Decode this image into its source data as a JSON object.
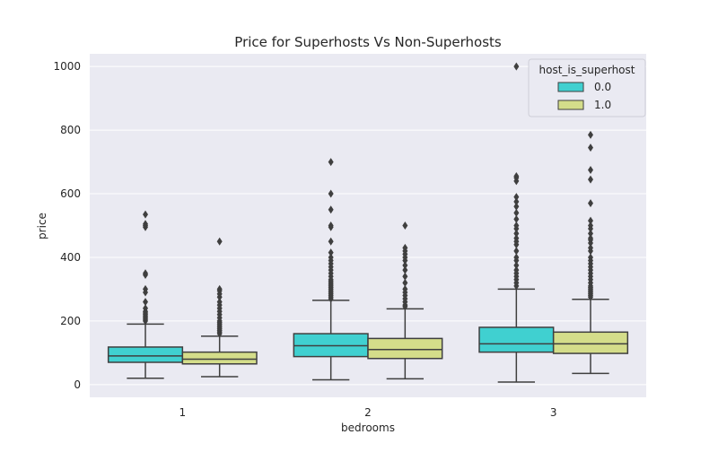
{
  "chart_data": {
    "type": "box",
    "title": "Price for Superhosts Vs Non-Superhosts",
    "xlabel": "bedrooms",
    "ylabel": "price",
    "ylim": [
      -40,
      1040
    ],
    "yticks": [
      0,
      200,
      400,
      600,
      800,
      1000
    ],
    "categories": [
      "1",
      "2",
      "3"
    ],
    "grid": true,
    "legend": {
      "title": "host_is_superhost",
      "placement": "top-right"
    },
    "series": [
      {
        "name": "0.0",
        "color": "#40d0d0",
        "boxes": [
          {
            "min": 20,
            "q1": 70,
            "median": 90,
            "q3": 118,
            "max": 190,
            "outliers": [
              200,
              205,
              210,
              215,
              220,
              225,
              230,
              240,
              260,
              290,
              300,
              345,
              350,
              495,
              500,
              505,
              535
            ]
          },
          {
            "min": 15,
            "q1": 88,
            "median": 122,
            "q3": 160,
            "max": 265,
            "outliers": [
              270,
              275,
              280,
              285,
              290,
              295,
              300,
              305,
              310,
              315,
              320,
              325,
              330,
              340,
              350,
              360,
              370,
              380,
              390,
              400,
              415,
              450,
              495,
              500,
              550,
              600,
              700
            ]
          },
          {
            "min": 8,
            "q1": 102,
            "median": 128,
            "q3": 180,
            "max": 300,
            "outliers": [
              310,
              320,
              330,
              340,
              350,
              360,
              375,
              390,
              400,
              420,
              440,
              450,
              460,
              475,
              490,
              500,
              520,
              540,
              560,
              575,
              590,
              640,
              650,
              655,
              1000
            ]
          }
        ]
      },
      {
        "name": "1.0",
        "color": "#d4dd8a",
        "boxes": [
          {
            "min": 25,
            "q1": 65,
            "median": 80,
            "q3": 102,
            "max": 152,
            "outliers": [
              160,
              165,
              170,
              175,
              180,
              185,
              190,
              195,
              200,
              210,
              220,
              230,
              240,
              250,
              260,
              275,
              285,
              295,
              300,
              450
            ]
          },
          {
            "min": 18,
            "q1": 82,
            "median": 110,
            "q3": 145,
            "max": 238,
            "outliers": [
              245,
              250,
              260,
              270,
              280,
              290,
              300,
              320,
              340,
              360,
              375,
              390,
              400,
              410,
              420,
              430,
              500
            ]
          },
          {
            "min": 35,
            "q1": 98,
            "median": 128,
            "q3": 165,
            "max": 268,
            "outliers": [
              275,
              280,
              285,
              290,
              295,
              300,
              305,
              310,
              320,
              330,
              340,
              350,
              360,
              370,
              380,
              390,
              400,
              420,
              430,
              445,
              455,
              460,
              475,
              490,
              500,
              515,
              570,
              645,
              675,
              745,
              785
            ]
          }
        ]
      }
    ]
  }
}
